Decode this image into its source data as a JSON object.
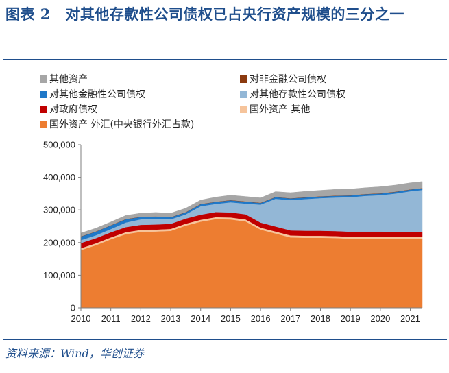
{
  "header": {
    "title": "图表 2　对其他存款性公司债权已占央行资产规模的三分之一"
  },
  "footer": {
    "source": "资料来源：Wind，华创证券"
  },
  "chart_data": {
    "type": "area",
    "stacked": true,
    "title": "图表 2　对其他存款性公司债权已占央行资产规模的三分之一",
    "xlabel": "",
    "ylabel": "",
    "x_ticks": [
      "2010",
      "2011",
      "2012",
      "2013",
      "2014",
      "2015",
      "2016",
      "2017",
      "2018",
      "2019",
      "2020",
      "2021"
    ],
    "y_ticks": [
      "0",
      "100,000",
      "200,000",
      "300,000",
      "400,000",
      "500,000"
    ],
    "xlim": [
      2010.0,
      2021.4
    ],
    "ylim": [
      0,
      500000
    ],
    "x": [
      2010.0,
      2010.5,
      2011.0,
      2011.5,
      2012.0,
      2012.5,
      2013.0,
      2013.5,
      2014.0,
      2014.5,
      2015.0,
      2015.5,
      2016.0,
      2016.5,
      2017.0,
      2017.5,
      2018.0,
      2018.5,
      2019.0,
      2019.5,
      2020.0,
      2020.5,
      2021.0,
      2021.4
    ],
    "legend": [
      {
        "name": "其他资产",
        "color": "#a6a6a6"
      },
      {
        "name": "对非金融公司债权",
        "color": "#8b3a0f"
      },
      {
        "name": "对其他金融性公司债权",
        "color": "#1f78c8"
      },
      {
        "name": "对其他存款性公司债权",
        "color": "#93b7d6"
      },
      {
        "name": "对政府债权",
        "color": "#c00000"
      },
      {
        "name": "国外资产 其他",
        "color": "#f6c49b"
      },
      {
        "name": "国外资产 外汇(中央银行外汇占款)",
        "color": "#ed7d31"
      }
    ],
    "series": [
      {
        "name": "国外资产 外汇(中央银行外汇占款)",
        "color": "#ed7d31",
        "values": [
          177000,
          192000,
          210000,
          226000,
          233000,
          234000,
          236000,
          252000,
          264000,
          272000,
          271000,
          265000,
          240000,
          228000,
          216000,
          215000,
          215000,
          214000,
          212000,
          212000,
          212000,
          211000,
          211000,
          212000
        ]
      },
      {
        "name": "国外资产 其他",
        "color": "#f6c49b",
        "values": [
          6000,
          6000,
          6000,
          6000,
          6000,
          6000,
          6000,
          6000,
          6000,
          6000,
          6000,
          6000,
          6000,
          6000,
          6000,
          6000,
          6000,
          6000,
          6000,
          6000,
          6000,
          6000,
          6000,
          6000
        ]
      },
      {
        "name": "对政府债权",
        "color": "#c00000",
        "values": [
          15500,
          15500,
          15500,
          15500,
          15500,
          15500,
          15500,
          15500,
          15500,
          15500,
          15500,
          15500,
          15300,
          15300,
          15300,
          15300,
          15300,
          15300,
          15300,
          15300,
          15300,
          15300,
          15300,
          15300
        ]
      },
      {
        "name": "对其他存款性公司债权",
        "color": "#93b7d6",
        "values": [
          9000,
          9000,
          10000,
          14000,
          17000,
          17000,
          14000,
          13000,
          26000,
          25000,
          31000,
          33000,
          55000,
          85000,
          93000,
          97000,
          100000,
          103000,
          106000,
          110000,
          112000,
          118000,
          125000,
          128000
        ]
      },
      {
        "name": "对其他金融性公司债权",
        "color": "#1f78c8",
        "values": [
          11000,
          11000,
          11000,
          10000,
          7000,
          7000,
          6000,
          6000,
          6000,
          6000,
          6000,
          6000,
          5000,
          5000,
          5000,
          5000,
          5000,
          5000,
          5000,
          5000,
          5000,
          5000,
          5000,
          5000
        ]
      },
      {
        "name": "对非金融公司债权",
        "color": "#8b3a0f",
        "values": [
          700,
          700,
          700,
          700,
          700,
          700,
          700,
          700,
          700,
          700,
          700,
          700,
          700,
          700,
          700,
          700,
          700,
          700,
          700,
          700,
          700,
          700,
          700,
          700
        ]
      },
      {
        "name": "其他资产",
        "color": "#a6a6a6",
        "values": [
          10000,
          10000,
          10000,
          11000,
          11000,
          12000,
          12000,
          12000,
          12000,
          14000,
          15000,
          15000,
          15000,
          16000,
          17000,
          18000,
          18000,
          19000,
          19000,
          19000,
          20000,
          20000,
          20000,
          20000
        ]
      }
    ]
  }
}
